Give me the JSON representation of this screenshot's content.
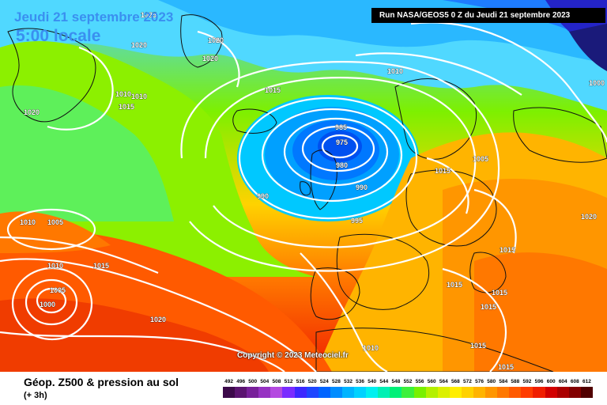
{
  "header": {
    "date_title": "Jeudi 21 septembre 2023",
    "time_title": "5:00 locale",
    "run_label": "Run NASA/GEOS5 0 Z du Jeudi 21 septembre 2023"
  },
  "copyright": "Copyright © 2023 Meteociel.fr",
  "legend": {
    "title": "Géop. Z500 & pression au sol",
    "subtitle": "(+ 3h)",
    "scale_values": [
      "492",
      "496",
      "500",
      "504",
      "508",
      "512",
      "516",
      "520",
      "524",
      "528",
      "532",
      "536",
      "540",
      "544",
      "548",
      "552",
      "556",
      "560",
      "564",
      "568",
      "572",
      "576",
      "580",
      "584",
      "588",
      "592",
      "596",
      "600",
      "604",
      "608",
      "612"
    ],
    "scale_colors": [
      "#3c0a4a",
      "#5b1470",
      "#78209a",
      "#9632c2",
      "#b44ae0",
      "#7a2cff",
      "#3c28ff",
      "#1e46ff",
      "#0064ff",
      "#008cff",
      "#00b4ff",
      "#00d2ff",
      "#00f0f0",
      "#00f0b4",
      "#00f078",
      "#3cf03c",
      "#78f000",
      "#b4f000",
      "#dcf000",
      "#ffee00",
      "#ffd200",
      "#ffb400",
      "#ff9600",
      "#ff7800",
      "#ff5a00",
      "#ff3c00",
      "#f01e00",
      "#d20000",
      "#aa0000",
      "#820000",
      "#500000"
    ]
  },
  "isobar_labels": [
    "1025",
    "1020",
    "1020",
    "1020",
    "1010",
    "1010",
    "1015",
    "1020",
    "1015",
    "1010",
    "1000",
    "985",
    "975",
    "980",
    "990",
    "990",
    "1005",
    "995",
    "1010",
    "1005",
    "1020",
    "1010",
    "1015",
    "1005",
    "1000",
    "1015",
    "1020",
    "1015",
    "1015",
    "1015",
    "1015",
    "1010",
    "1015",
    "1015"
  ],
  "pressure_centers": [
    {
      "type": "low",
      "value": "975",
      "place": "entre l'Islande et l'Ecosse"
    },
    {
      "type": "low",
      "value": "1000",
      "place": "Atlantique, ouest des Açores"
    }
  ]
}
